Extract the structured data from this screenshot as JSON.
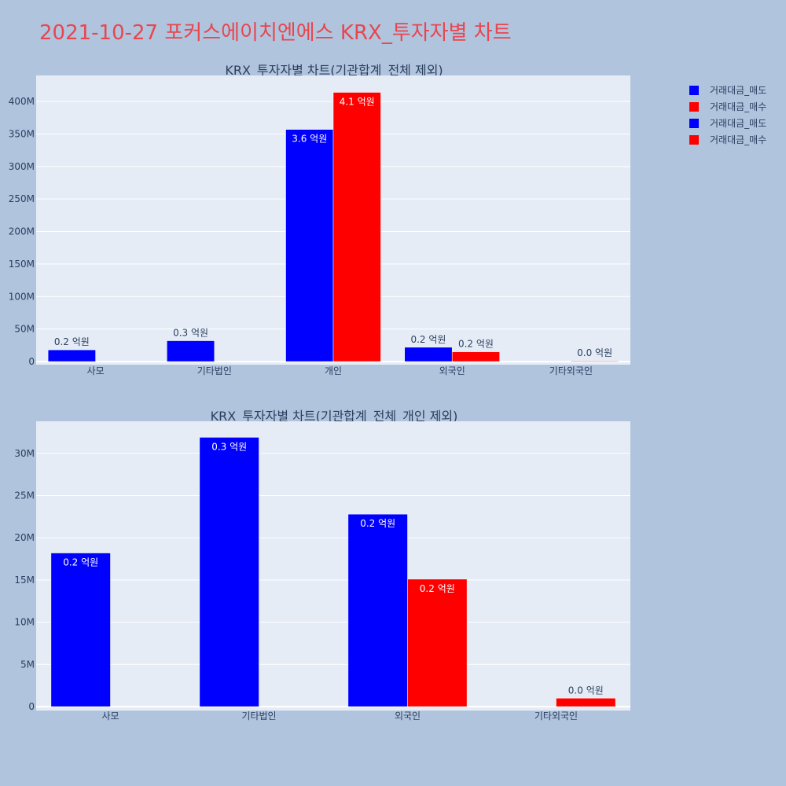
{
  "page_title": "2021-10-27 포커스에이치엔에스 KRX_투자자별 차트",
  "legend": [
    {
      "label": "거래대금_매도",
      "color": "#0000ff"
    },
    {
      "label": "거래대금_매수",
      "color": "#ff0000"
    },
    {
      "label": "거래대금_매도",
      "color": "#0000ff"
    },
    {
      "label": "거래대금_매수",
      "color": "#ff0000"
    }
  ],
  "chart_data": [
    {
      "type": "bar",
      "title": "KRX_투자자별 차트(기관합계_전체 제외)",
      "categories": [
        "사모",
        "기타법인",
        "개인",
        "외국인",
        "기타외국인"
      ],
      "ylim": [
        0,
        440000000
      ],
      "yticks": [
        0,
        50000000,
        100000000,
        150000000,
        200000000,
        250000000,
        300000000,
        350000000,
        400000000
      ],
      "ytick_labels": [
        "0",
        "50M",
        "100M",
        "150M",
        "200M",
        "250M",
        "300M",
        "350M",
        "400M"
      ],
      "grid": true,
      "series": [
        {
          "name": "거래대금_매도",
          "color": "#0000ff",
          "values": [
            18000000,
            32000000,
            357000000,
            22000000,
            0
          ],
          "labels": [
            "0.2 억원",
            "0.3 억원",
            "3.6 억원",
            "0.2 억원",
            null
          ]
        },
        {
          "name": "거래대금_매수",
          "color": "#ff0000",
          "values": [
            0,
            0,
            414000000,
            15000000,
            1000000
          ],
          "labels": [
            null,
            null,
            "4.1 억원",
            "0.2 억원",
            "0.0 억원"
          ]
        }
      ]
    },
    {
      "type": "bar",
      "title": "KRX_투자자별 차트(기관합계_전체_개인 제외)",
      "categories": [
        "사모",
        "기타법인",
        "외국인",
        "기타외국인"
      ],
      "ylim": [
        0,
        33800000
      ],
      "yticks": [
        0,
        5000000,
        10000000,
        15000000,
        20000000,
        25000000,
        30000000
      ],
      "ytick_labels": [
        "0",
        "5M",
        "10M",
        "15M",
        "20M",
        "25M",
        "30M"
      ],
      "grid": true,
      "series": [
        {
          "name": "거래대금_매도",
          "color": "#0000ff",
          "values": [
            18200000,
            31900000,
            22800000,
            0
          ],
          "labels": [
            "0.2 억원",
            "0.3 억원",
            "0.2 억원",
            null
          ]
        },
        {
          "name": "거래대금_매수",
          "color": "#ff0000",
          "values": [
            0,
            0,
            15100000,
            1000000
          ],
          "labels": [
            null,
            null,
            "0.2 억원",
            "0.0 억원"
          ]
        }
      ]
    }
  ]
}
